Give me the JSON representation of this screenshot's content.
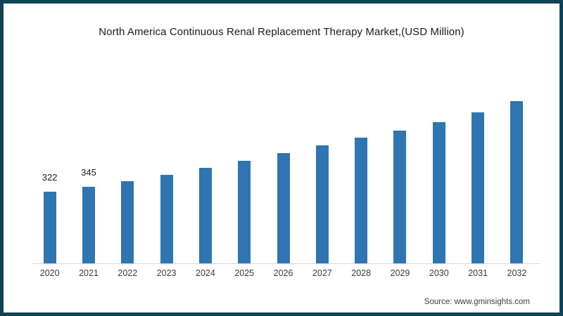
{
  "page": {
    "title": "North America Continuous Renal Replacement Therapy Market,(USD Million)",
    "source_label": "Source: www.gminsights.com"
  },
  "colors": {
    "bar": "#2e75b2",
    "frame_border": "#0e4456",
    "axis_line": "#d8d8d8",
    "title_text": "#191923",
    "x_axis_label_text": "#3a3a3a",
    "value_label_text": "#1a1a1a",
    "source_text": "#3c3c44"
  },
  "chart_data": {
    "type": "bar",
    "title": "North America Continuous Renal Replacement Therapy Market,(USD Million)",
    "categories": [
      "2020",
      "2021",
      "2022",
      "2023",
      "2024",
      "2025",
      "2026",
      "2027",
      "2028",
      "2029",
      "2030",
      "2031",
      "2032"
    ],
    "values": [
      322,
      345,
      370,
      398,
      430,
      461,
      495,
      532,
      566,
      598,
      635,
      679,
      730
    ],
    "visible_value_labels": [
      "322",
      "345",
      "",
      "",
      "",
      "",
      "",
      "",
      "",
      "",
      "",
      "",
      ""
    ],
    "xlabel": "",
    "ylabel": "",
    "ylim": [
      0,
      760
    ],
    "y_axis_shown": false,
    "grid": false,
    "legend": false,
    "bar_color": "#2e75b2",
    "source": "Source: www.gminsights.com"
  }
}
